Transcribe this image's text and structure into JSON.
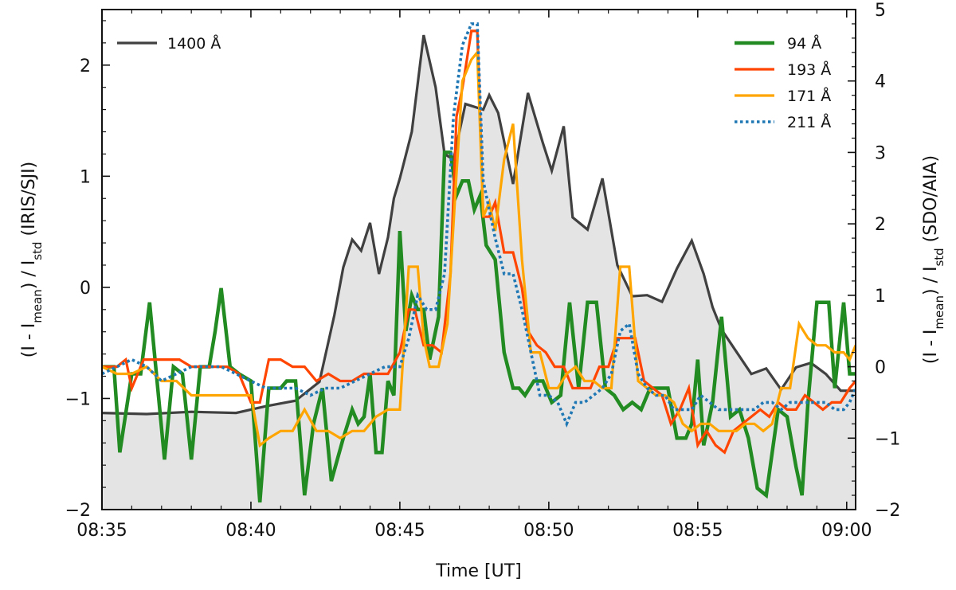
{
  "chart_data": {
    "type": "line",
    "xlabel": "Time [UT]",
    "ylabel_left": {
      "main": "(I - I",
      "sub1": "mean",
      "mid": ") / I",
      "sub2": "std",
      "tail": " (IRIS/SJI)"
    },
    "ylabel_right": {
      "main": "(I - I",
      "sub1": "mean",
      "mid": ") / I",
      "sub2": "std",
      "tail": " (SDO/AIA)"
    },
    "xlim": [
      0,
      25.3
    ],
    "xticks": [
      {
        "value": 0,
        "label": "08:35"
      },
      {
        "value": 5,
        "label": "08:40"
      },
      {
        "value": 10,
        "label": "08:45"
      },
      {
        "value": 15,
        "label": "08:50"
      },
      {
        "value": 20,
        "label": "08:55"
      },
      {
        "value": 25,
        "label": "09:00"
      }
    ],
    "ylim_left": [
      -2,
      2.5
    ],
    "yticks_left": [
      -2,
      -1,
      0,
      1,
      2
    ],
    "ylim_right": [
      -2,
      5
    ],
    "yticks_right": [
      -2,
      -1,
      0,
      1,
      2,
      3,
      4,
      5
    ],
    "grid": false,
    "legends": {
      "left": "top-left",
      "right": "top-right"
    },
    "series": [
      {
        "name": "1400 Å",
        "axis": "left",
        "color": "#404040",
        "style": "solid",
        "width": 3.2,
        "fill": "#e4e4e4",
        "x": [
          0,
          1.5,
          3,
          4.5,
          5.5,
          6.5,
          7.3,
          7.8,
          8.1,
          8.4,
          8.7,
          9.0,
          9.3,
          9.6,
          9.8,
          10.0,
          10.4,
          10.8,
          11.2,
          11.5,
          11.8,
          12.2,
          12.8,
          13.0,
          13.3,
          13.8,
          14.3,
          14.8,
          15.1,
          15.5,
          15.8,
          16.3,
          16.8,
          17.3,
          17.8,
          18.3,
          18.8,
          19.3,
          19.8,
          20.2,
          20.5,
          20.8,
          21.3,
          21.8,
          22.3,
          22.8,
          23.3,
          23.8,
          24.3,
          24.8,
          25.3
        ],
        "y": [
          -1.13,
          -1.14,
          -1.12,
          -1.13,
          -1.07,
          -1.02,
          -0.85,
          -0.25,
          0.18,
          0.43,
          0.33,
          0.58,
          0.12,
          0.45,
          0.8,
          0.98,
          1.4,
          2.27,
          1.8,
          1.2,
          1.15,
          1.65,
          1.6,
          1.73,
          1.57,
          0.93,
          1.75,
          1.3,
          1.05,
          1.45,
          0.63,
          0.52,
          0.98,
          0.2,
          -0.08,
          -0.07,
          -0.13,
          0.17,
          0.42,
          0.12,
          -0.18,
          -0.38,
          -0.58,
          -0.78,
          -0.73,
          -0.92,
          -0.72,
          -0.68,
          -0.78,
          -0.93,
          -0.93
        ]
      },
      {
        "name": "94 Å",
        "axis": "right",
        "color": "#228B22",
        "style": "solid",
        "width": 4.5,
        "x": [
          0,
          0.4,
          0.6,
          1.0,
          1.3,
          1.6,
          2.1,
          2.4,
          2.7,
          3.0,
          3.3,
          3.6,
          3.8,
          4.0,
          4.3,
          4.6,
          5.0,
          5.3,
          5.6,
          6.0,
          6.2,
          6.5,
          6.8,
          7.1,
          7.4,
          7.7,
          8.1,
          8.4,
          8.6,
          8.8,
          9.0,
          9.2,
          9.4,
          9.6,
          9.8,
          10.0,
          10.2,
          10.4,
          10.6,
          10.8,
          11.0,
          11.3,
          11.5,
          11.7,
          11.9,
          12.1,
          12.3,
          12.5,
          12.7,
          12.9,
          13.2,
          13.5,
          13.8,
          14.0,
          14.2,
          14.5,
          14.8,
          15.1,
          15.4,
          15.7,
          16.0,
          16.3,
          16.6,
          16.9,
          17.2,
          17.5,
          17.8,
          18.1,
          18.4,
          18.7,
          19.0,
          19.3,
          19.6,
          19.8,
          20.0,
          20.2,
          20.5,
          20.8,
          21.1,
          21.4,
          21.7,
          22.0,
          22.3,
          22.5,
          22.7,
          23.0,
          23.3,
          23.5,
          23.7,
          24.0,
          24.2,
          24.4,
          24.6,
          24.9,
          25.1,
          25.3
        ],
        "y": [
          0,
          0,
          -1.2,
          -0.1,
          -0.1,
          0.9,
          -1.3,
          0,
          -0.1,
          -1.3,
          0,
          0,
          0.5,
          1.1,
          0,
          -0.1,
          -0.2,
          -1.9,
          -0.3,
          -0.3,
          -0.2,
          -0.2,
          -1.8,
          -0.8,
          -0.3,
          -1.6,
          -1,
          -0.6,
          -0.8,
          -0.7,
          -0.1,
          -1.2,
          -1.2,
          -0.2,
          -0.4,
          1.9,
          0.5,
          1,
          0.8,
          0.8,
          0.1,
          0.7,
          3,
          3,
          2.4,
          2.6,
          2.6,
          2.2,
          2.4,
          1.7,
          1.5,
          0.2,
          -0.3,
          -0.3,
          -0.4,
          -0.2,
          -0.2,
          -0.5,
          -0.4,
          0.9,
          -0.3,
          0.9,
          0.9,
          -0.3,
          -0.4,
          -0.6,
          -0.5,
          -0.6,
          -0.3,
          -0.3,
          -0.3,
          -1,
          -1,
          -0.8,
          0.1,
          -1.1,
          -0.5,
          0.7,
          -0.7,
          -0.6,
          -1,
          -1.7,
          -1.8,
          -1.2,
          -0.6,
          -0.7,
          -1.4,
          -1.8,
          -0.5,
          0.9,
          0.9,
          0.9,
          -0.3,
          0.9,
          -0.1,
          -0.1
        ]
      },
      {
        "name": "193 Å",
        "axis": "right",
        "color": "#FF4500",
        "style": "solid",
        "width": 3.2,
        "x": [
          0,
          0.5,
          0.8,
          1.0,
          1.4,
          1.8,
          2.2,
          2.6,
          3.0,
          3.4,
          3.8,
          4.2,
          4.6,
          5.0,
          5.3,
          5.6,
          6.0,
          6.4,
          6.8,
          7.2,
          7.6,
          8.0,
          8.4,
          8.8,
          9.2,
          9.6,
          10.0,
          10.3,
          10.5,
          10.8,
          11.1,
          11.4,
          11.7,
          11.9,
          12.1,
          12.4,
          12.6,
          12.8,
          13.0,
          13.2,
          13.5,
          13.8,
          14.1,
          14.3,
          14.6,
          14.9,
          15.2,
          15.5,
          15.8,
          16.1,
          16.4,
          16.7,
          17.0,
          17.3,
          17.6,
          17.9,
          18.2,
          18.5,
          18.8,
          19.1,
          19.4,
          19.7,
          20.0,
          20.3,
          20.6,
          20.9,
          21.2,
          21.5,
          21.8,
          22.1,
          22.4,
          22.7,
          23.0,
          23.3,
          23.6,
          23.9,
          24.2,
          24.5,
          24.8,
          25.1,
          25.3
        ],
        "y": [
          0,
          0,
          0.1,
          -0.3,
          0.1,
          0.1,
          0.1,
          0.1,
          0,
          0,
          0,
          0,
          -0.1,
          -0.5,
          -0.5,
          0.1,
          0.1,
          0,
          0,
          -0.2,
          -0.1,
          -0.2,
          -0.2,
          -0.1,
          -0.1,
          -0.1,
          0.2,
          0.8,
          0.8,
          0.3,
          0.3,
          0.2,
          1.3,
          3.5,
          3.9,
          4.7,
          4.7,
          2.1,
          2.1,
          2.3,
          1.6,
          1.6,
          1.1,
          0.5,
          0.3,
          0.2,
          0,
          0,
          -0.3,
          -0.3,
          -0.3,
          0,
          0,
          0.4,
          0.4,
          0.4,
          -0.2,
          -0.3,
          -0.4,
          -0.8,
          -0.6,
          -0.3,
          -1.1,
          -0.9,
          -1.1,
          -1.2,
          -0.9,
          -0.8,
          -0.7,
          -0.6,
          -0.7,
          -0.5,
          -0.6,
          -0.6,
          -0.4,
          -0.5,
          -0.6,
          -0.5,
          -0.5,
          -0.3,
          -0.2
        ]
      },
      {
        "name": "171 Å",
        "axis": "right",
        "color": "#FFA500",
        "style": "solid",
        "width": 3.2,
        "x": [
          0,
          0.5,
          1.0,
          1.5,
          2.0,
          2.5,
          3.0,
          3.5,
          4.0,
          4.5,
          5.0,
          5.3,
          5.6,
          6.0,
          6.4,
          6.8,
          7.2,
          7.6,
          8.0,
          8.4,
          8.8,
          9.2,
          9.6,
          10.0,
          10.3,
          10.6,
          10.8,
          11.0,
          11.3,
          11.6,
          11.9,
          12.1,
          12.4,
          12.6,
          12.8,
          13.0,
          13.2,
          13.5,
          13.8,
          14.1,
          14.4,
          14.7,
          15.0,
          15.3,
          15.6,
          15.9,
          16.2,
          16.5,
          16.8,
          17.1,
          17.4,
          17.7,
          18.0,
          18.3,
          18.6,
          18.9,
          19.2,
          19.5,
          19.8,
          20.1,
          20.4,
          20.7,
          21.0,
          21.3,
          21.6,
          21.9,
          22.2,
          22.5,
          22.8,
          23.1,
          23.4,
          23.7,
          24.0,
          24.3,
          24.6,
          24.9,
          25.1,
          25.3
        ],
        "y": [
          0,
          -0.1,
          -0.1,
          0,
          -0.2,
          -0.2,
          -0.4,
          -0.4,
          -0.4,
          -0.4,
          -0.4,
          -1.1,
          -1,
          -0.9,
          -0.9,
          -0.6,
          -0.9,
          -0.9,
          -1,
          -0.9,
          -0.9,
          -0.7,
          -0.6,
          -0.6,
          1.4,
          1.4,
          0.4,
          0,
          0,
          0.6,
          2.7,
          4,
          4.3,
          4.4,
          2.1,
          2.3,
          1.9,
          2.9,
          3.4,
          1.5,
          0.2,
          0.2,
          -0.3,
          -0.3,
          -0.1,
          0,
          -0.2,
          -0.2,
          -0.3,
          -0.3,
          1.4,
          1.4,
          -0.2,
          -0.3,
          -0.4,
          -0.4,
          -0.5,
          -0.8,
          -0.9,
          -0.8,
          -0.8,
          -0.9,
          -0.9,
          -0.9,
          -0.8,
          -0.8,
          -0.9,
          -0.8,
          -0.3,
          -0.3,
          0.6,
          0.4,
          0.3,
          0.3,
          0.2,
          0.2,
          0.1,
          0.3
        ]
      },
      {
        "name": "211 Å",
        "axis": "right",
        "color": "#1F77B4",
        "style": "dotted",
        "width": 3.6,
        "x": [
          0,
          0.5,
          1.0,
          1.5,
          2.0,
          2.5,
          3.0,
          3.5,
          4.0,
          4.5,
          5.0,
          5.5,
          6.0,
          6.5,
          7.0,
          7.5,
          8.0,
          8.5,
          9.0,
          9.5,
          10.0,
          10.3,
          10.6,
          10.9,
          11.2,
          11.5,
          11.8,
          12.1,
          12.4,
          12.6,
          12.8,
          13.0,
          13.2,
          13.5,
          13.8,
          14.1,
          14.4,
          14.7,
          15.0,
          15.3,
          15.6,
          15.9,
          16.2,
          16.5,
          16.8,
          17.1,
          17.4,
          17.7,
          18.0,
          18.3,
          18.6,
          18.9,
          19.2,
          19.5,
          19.8,
          20.1,
          20.4,
          20.7,
          21.0,
          21.3,
          21.6,
          21.9,
          22.2,
          22.5,
          22.8,
          23.1,
          23.4,
          23.7,
          24.0,
          24.3,
          24.6,
          24.9,
          25.1,
          25.3
        ],
        "y": [
          -0.1,
          0,
          0.1,
          0,
          -0.2,
          -0.1,
          0,
          0,
          0,
          -0.1,
          -0.2,
          -0.3,
          -0.3,
          -0.3,
          -0.4,
          -0.3,
          -0.3,
          -0.2,
          -0.1,
          0,
          0,
          0.4,
          1,
          0.8,
          0.8,
          1.3,
          3.5,
          4.5,
          4.8,
          4.8,
          2.6,
          2.2,
          1.8,
          1.3,
          1.3,
          0.8,
          0.2,
          -0.4,
          -0.4,
          -0.5,
          -0.8,
          -0.5,
          -0.5,
          -0.4,
          -0.3,
          -0.1,
          0.5,
          0.6,
          -0.1,
          -0.3,
          -0.4,
          -0.4,
          -0.6,
          -0.6,
          -0.6,
          -0.4,
          -0.5,
          -0.6,
          -0.6,
          -0.6,
          -0.6,
          -0.6,
          -0.5,
          -0.5,
          -0.6,
          -0.5,
          -0.5,
          -0.5,
          -0.5,
          -0.5,
          -0.6,
          -0.6,
          -0.5,
          -0.3
        ]
      }
    ]
  }
}
